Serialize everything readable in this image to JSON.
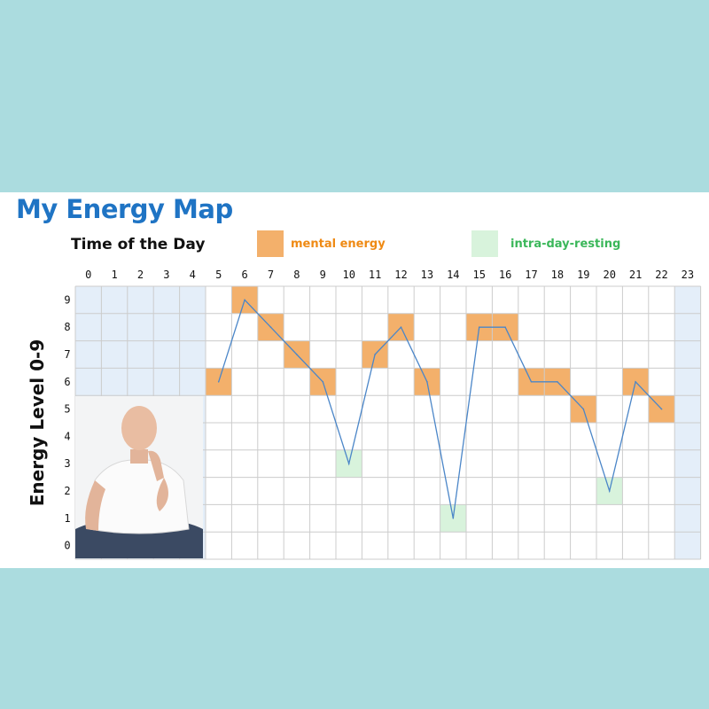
{
  "title": "My Energy Map",
  "x_axis_label": "Time of the Day",
  "y_axis_label": "Energy Level 0-9",
  "legend": [
    {
      "label": "mental energy",
      "color": "#f3b06b",
      "text_color": "#ef8a14"
    },
    {
      "label": "intra-day-resting",
      "color": "#d8f3dc",
      "text_color": "#3bb75a"
    }
  ],
  "colors": {
    "background": "#abdcdf",
    "title": "#1f74c4",
    "line": "#4b86c8",
    "sleep_zone": "#e4eef9",
    "grid": "#cccccc"
  },
  "chart_data": {
    "type": "line",
    "x_ticks": [
      "0",
      "1",
      "2",
      "3",
      "4",
      "5",
      "6",
      "7",
      "8",
      "9",
      "10",
      "11",
      "12",
      "13",
      "14",
      "15",
      "16",
      "17",
      "18",
      "19",
      "20",
      "21",
      "22",
      "23"
    ],
    "y_ticks": [
      "0",
      "1",
      "2",
      "3",
      "4",
      "5",
      "6",
      "7",
      "8",
      "9"
    ],
    "xlim": [
      0,
      23
    ],
    "ylim": [
      0,
      9
    ],
    "grid": true,
    "sleep_hours": [
      0,
      1,
      2,
      3,
      4,
      23
    ],
    "series": [
      {
        "x": [
          5,
          6,
          7,
          8,
          9,
          10,
          11,
          12,
          13,
          14,
          15,
          16,
          17,
          18,
          19,
          20,
          21,
          22
        ],
        "y": [
          6,
          9,
          8,
          7,
          6,
          3,
          7,
          8,
          6,
          1,
          8,
          8,
          6,
          6,
          5,
          2,
          6,
          5
        ]
      }
    ],
    "highlights": [
      {
        "type": "mental energy",
        "points": [
          [
            5,
            6
          ],
          [
            6,
            9
          ],
          [
            7,
            8
          ],
          [
            8,
            7
          ],
          [
            9,
            6
          ],
          [
            11,
            7
          ],
          [
            12,
            8
          ],
          [
            13,
            6
          ],
          [
            15,
            8
          ],
          [
            16,
            8
          ],
          [
            17,
            6
          ],
          [
            18,
            6
          ],
          [
            19,
            5
          ],
          [
            21,
            6
          ],
          [
            22,
            5
          ]
        ]
      },
      {
        "type": "intra-day-resting",
        "points": [
          [
            10,
            3
          ],
          [
            14,
            1
          ],
          [
            20,
            2
          ]
        ]
      }
    ]
  }
}
